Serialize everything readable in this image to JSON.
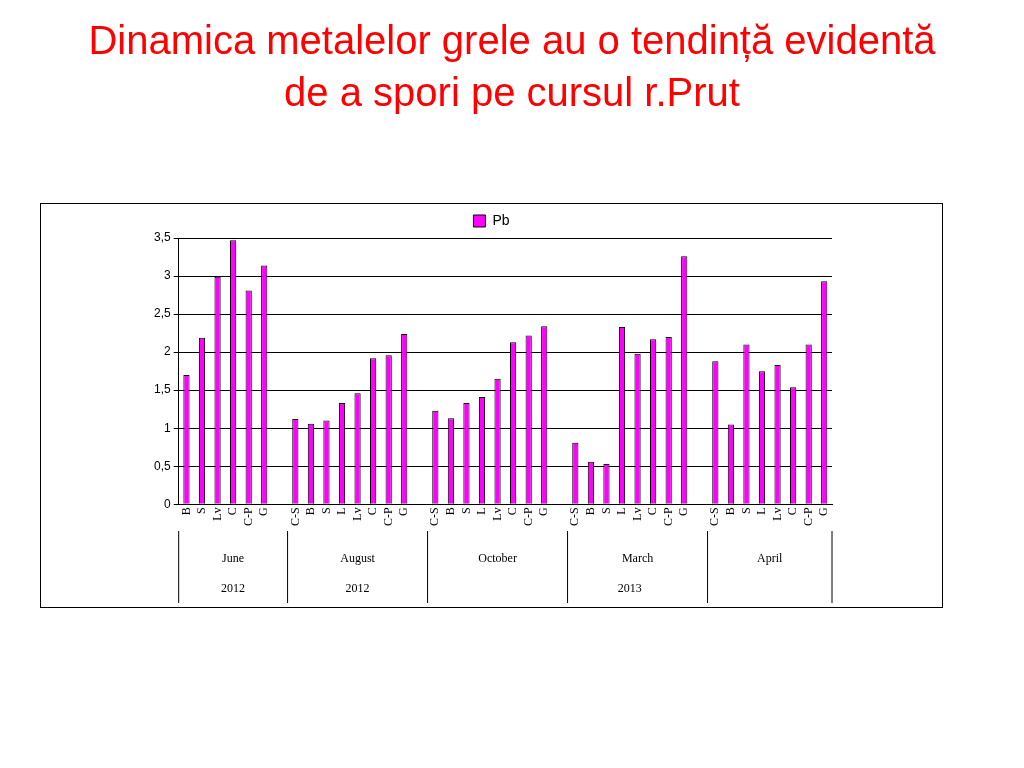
{
  "chart_data": {
    "type": "bar",
    "title": "Dinamica metalelor grele au o tendință evidentă de a spori pe cursul r.Prut",
    "categories": [
      "B",
      "S",
      "Lv",
      "C",
      "C-P",
      "G",
      null,
      "C-S",
      "B",
      "S",
      "L",
      "Lv",
      "C",
      "C-P",
      "G",
      null,
      "C-S",
      "B",
      "S",
      "L",
      "Lv",
      "C",
      "C-P",
      "G",
      null,
      "C-S",
      "B",
      "S",
      "L",
      "Lv",
      "C",
      "C-P",
      "G",
      null,
      "C-S",
      "B",
      "S",
      "L",
      "Lv",
      "C",
      "C-P",
      "G"
    ],
    "series": [
      {
        "name": "Pb",
        "color": "#ff00ff",
        "values": [
          1.7,
          2.19,
          2.99,
          3.47,
          2.81,
          3.14,
          null,
          1.12,
          1.06,
          1.1,
          1.33,
          1.46,
          1.92,
          1.96,
          2.24,
          null,
          1.23,
          1.13,
          1.33,
          1.41,
          1.65,
          2.13,
          2.22,
          2.34,
          null,
          0.81,
          0.56,
          0.53,
          2.33,
          1.98,
          2.17,
          2.2,
          3.26,
          null,
          1.88,
          1.05,
          2.1,
          1.75,
          1.83,
          1.54,
          2.1,
          2.93
        ]
      }
    ],
    "ylim": [
      0,
      3.5
    ],
    "yticks": [
      0,
      {
        "value": 0.5,
        "label": "0,5"
      },
      1,
      {
        "value": 1.5,
        "label": "1,5"
      },
      2,
      {
        "value": 2.5,
        "label": "2,5"
      },
      3,
      {
        "value": 3.5,
        "label": "3,5"
      }
    ],
    "grid": "y",
    "legend": "top",
    "annotations": [
      "June",
      "August",
      "October",
      "March",
      "April",
      "2012",
      "2012",
      "2013"
    ]
  }
}
